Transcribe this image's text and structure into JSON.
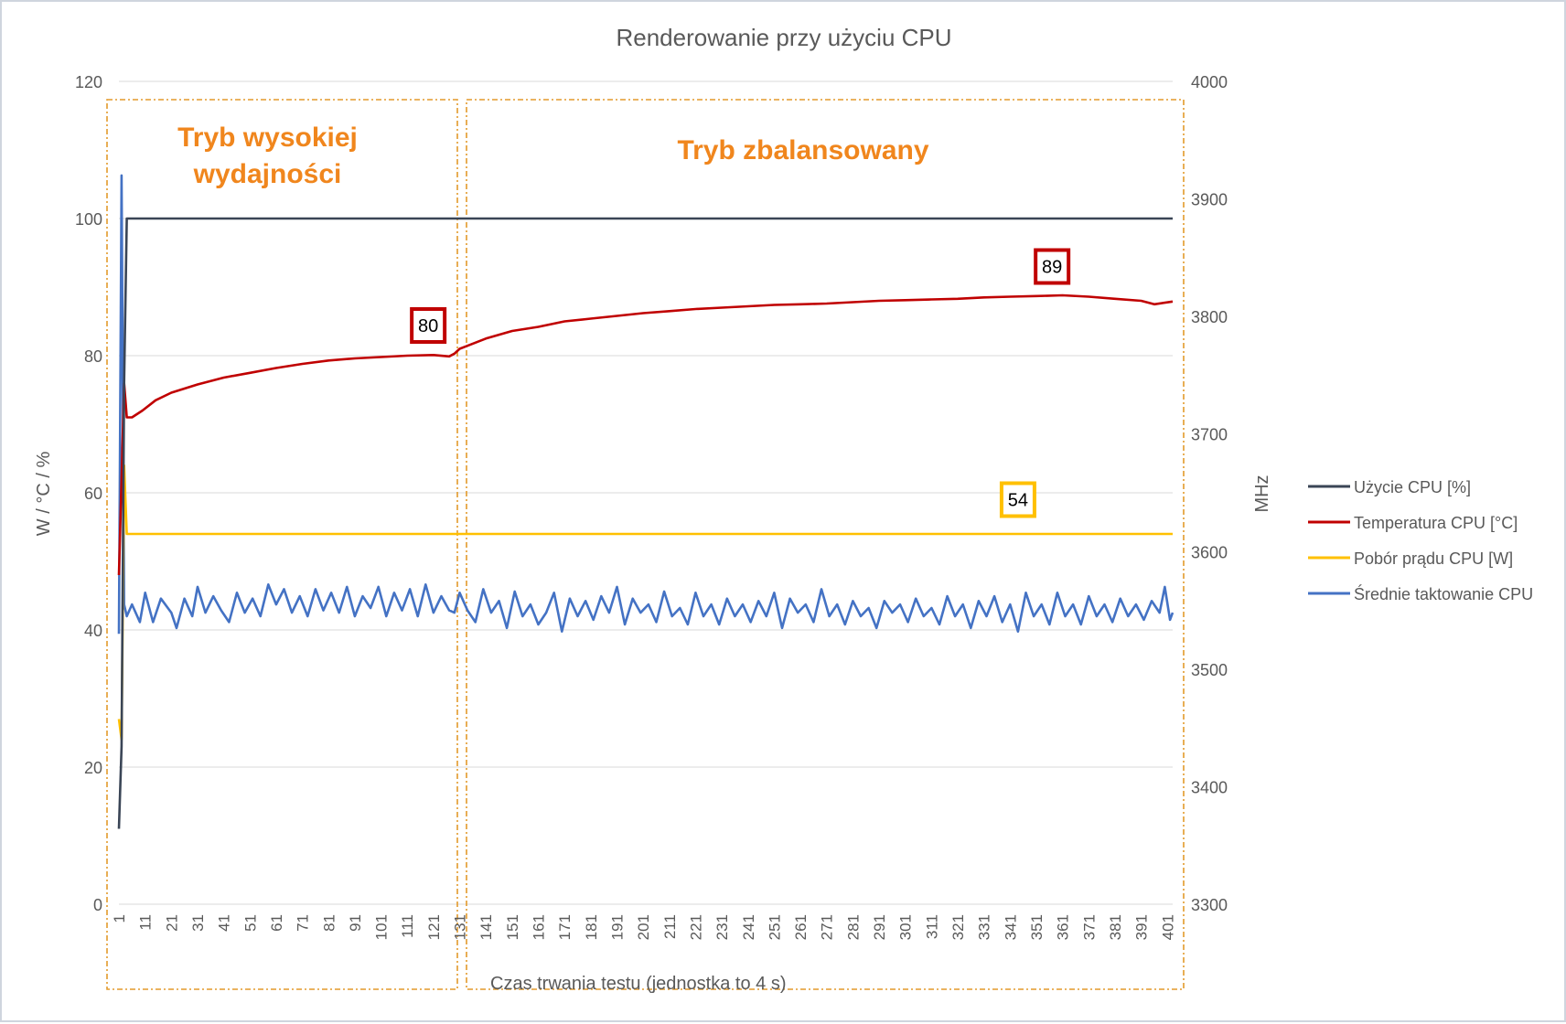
{
  "chart_data": {
    "type": "line",
    "title": "Renderowanie przy użyciu CPU",
    "xlabel": "Czas trwania testu (jednostka to 4 s)",
    "ylabel_left": "W / °C / %",
    "ylabel_right": "MHz",
    "ylim_left": [
      0,
      120
    ],
    "ylim_right": [
      3300,
      4000
    ],
    "yticks_left": [
      0,
      20,
      40,
      60,
      80,
      100,
      120
    ],
    "yticks_right": [
      3300,
      3400,
      3500,
      3600,
      3700,
      3800,
      3900,
      4000
    ],
    "x_range": [
      1,
      403
    ],
    "xticks": [
      1,
      11,
      21,
      31,
      41,
      51,
      61,
      71,
      81,
      91,
      101,
      111,
      121,
      131,
      141,
      151,
      161,
      171,
      181,
      191,
      201,
      211,
      221,
      231,
      241,
      251,
      261,
      271,
      281,
      291,
      301,
      311,
      321,
      331,
      341,
      351,
      361,
      371,
      381,
      391,
      401
    ],
    "grid": "horizontal",
    "legend_position": "right",
    "regions": [
      {
        "label": "Tryb wysokiej wydajności",
        "x_start": 1,
        "x_end": 129
      },
      {
        "label": "Tryb zbalansowany",
        "x_start": 132,
        "x_end": 403
      }
    ],
    "series": [
      {
        "name": "Użycie CPU [%]",
        "axis": "left",
        "color": "#3a4556",
        "points": [
          [
            1,
            11
          ],
          [
            2,
            23
          ],
          [
            3,
            76
          ],
          [
            4,
            100
          ],
          [
            403,
            100
          ]
        ]
      },
      {
        "name": "Temperatura CPU [°C]",
        "axis": "left",
        "color": "#c00000",
        "points": [
          [
            1,
            48
          ],
          [
            2,
            62
          ],
          [
            3,
            76
          ],
          [
            4,
            71
          ],
          [
            6,
            71
          ],
          [
            10,
            72
          ],
          [
            15,
            73.5
          ],
          [
            21,
            74.6
          ],
          [
            31,
            75.8
          ],
          [
            41,
            76.8
          ],
          [
            51,
            77.5
          ],
          [
            61,
            78.2
          ],
          [
            71,
            78.8
          ],
          [
            81,
            79.3
          ],
          [
            91,
            79.6
          ],
          [
            101,
            79.8
          ],
          [
            111,
            80
          ],
          [
            121,
            80.1
          ],
          [
            127,
            79.9
          ],
          [
            129,
            80.3
          ],
          [
            131,
            81
          ],
          [
            141,
            82.5
          ],
          [
            151,
            83.6
          ],
          [
            161,
            84.2
          ],
          [
            171,
            85
          ],
          [
            181,
            85.4
          ],
          [
            191,
            85.8
          ],
          [
            201,
            86.2
          ],
          [
            211,
            86.5
          ],
          [
            221,
            86.8
          ],
          [
            231,
            87
          ],
          [
            241,
            87.2
          ],
          [
            251,
            87.4
          ],
          [
            261,
            87.5
          ],
          [
            271,
            87.6
          ],
          [
            281,
            87.8
          ],
          [
            291,
            88
          ],
          [
            301,
            88.1
          ],
          [
            311,
            88.2
          ],
          [
            321,
            88.3
          ],
          [
            331,
            88.5
          ],
          [
            341,
            88.6
          ],
          [
            351,
            88.7
          ],
          [
            361,
            88.8
          ],
          [
            371,
            88.6
          ],
          [
            381,
            88.3
          ],
          [
            391,
            88
          ],
          [
            396,
            87.5
          ],
          [
            403,
            87.9
          ]
        ]
      },
      {
        "name": "Pobór prądu CPU [W]",
        "axis": "left",
        "color": "#ffc000",
        "points": [
          [
            1,
            27
          ],
          [
            2,
            24
          ],
          [
            3,
            64
          ],
          [
            4,
            54
          ],
          [
            403,
            54
          ]
        ]
      },
      {
        "name": "Średnie taktowanie CPU",
        "axis": "right",
        "color": "#4472c4",
        "points": [
          [
            1,
            3530
          ],
          [
            2,
            3920
          ],
          [
            3,
            3555
          ],
          [
            4,
            3545
          ],
          [
            6,
            3555
          ],
          [
            9,
            3540
          ],
          [
            11,
            3565
          ],
          [
            14,
            3540
          ],
          [
            17,
            3560
          ],
          [
            21,
            3548
          ],
          [
            23,
            3535
          ],
          [
            26,
            3560
          ],
          [
            29,
            3545
          ],
          [
            31,
            3570
          ],
          [
            34,
            3548
          ],
          [
            37,
            3562
          ],
          [
            40,
            3550
          ],
          [
            43,
            3540
          ],
          [
            46,
            3565
          ],
          [
            49,
            3548
          ],
          [
            52,
            3560
          ],
          [
            55,
            3545
          ],
          [
            58,
            3572
          ],
          [
            61,
            3555
          ],
          [
            64,
            3568
          ],
          [
            67,
            3548
          ],
          [
            70,
            3562
          ],
          [
            73,
            3545
          ],
          [
            76,
            3568
          ],
          [
            79,
            3550
          ],
          [
            82,
            3565
          ],
          [
            85,
            3548
          ],
          [
            88,
            3570
          ],
          [
            91,
            3545
          ],
          [
            94,
            3562
          ],
          [
            97,
            3552
          ],
          [
            100,
            3570
          ],
          [
            103,
            3545
          ],
          [
            106,
            3565
          ],
          [
            109,
            3550
          ],
          [
            112,
            3568
          ],
          [
            115,
            3545
          ],
          [
            118,
            3572
          ],
          [
            121,
            3548
          ],
          [
            124,
            3562
          ],
          [
            127,
            3550
          ],
          [
            129,
            3548
          ],
          [
            131,
            3565
          ],
          [
            134,
            3550
          ],
          [
            137,
            3540
          ],
          [
            140,
            3568
          ],
          [
            143,
            3548
          ],
          [
            146,
            3558
          ],
          [
            149,
            3535
          ],
          [
            152,
            3566
          ],
          [
            155,
            3545
          ],
          [
            158,
            3555
          ],
          [
            161,
            3538
          ],
          [
            164,
            3548
          ],
          [
            167,
            3565
          ],
          [
            170,
            3532
          ],
          [
            173,
            3560
          ],
          [
            176,
            3545
          ],
          [
            179,
            3558
          ],
          [
            182,
            3542
          ],
          [
            185,
            3562
          ],
          [
            188,
            3548
          ],
          [
            191,
            3570
          ],
          [
            194,
            3538
          ],
          [
            197,
            3560
          ],
          [
            200,
            3548
          ],
          [
            203,
            3555
          ],
          [
            206,
            3540
          ],
          [
            209,
            3566
          ],
          [
            212,
            3545
          ],
          [
            215,
            3552
          ],
          [
            218,
            3538
          ],
          [
            221,
            3565
          ],
          [
            224,
            3545
          ],
          [
            227,
            3555
          ],
          [
            230,
            3538
          ],
          [
            233,
            3560
          ],
          [
            236,
            3545
          ],
          [
            239,
            3555
          ],
          [
            242,
            3540
          ],
          [
            245,
            3558
          ],
          [
            248,
            3545
          ],
          [
            251,
            3565
          ],
          [
            254,
            3535
          ],
          [
            257,
            3560
          ],
          [
            260,
            3548
          ],
          [
            263,
            3555
          ],
          [
            266,
            3540
          ],
          [
            269,
            3568
          ],
          [
            272,
            3545
          ],
          [
            275,
            3555
          ],
          [
            278,
            3538
          ],
          [
            281,
            3558
          ],
          [
            284,
            3545
          ],
          [
            287,
            3552
          ],
          [
            290,
            3535
          ],
          [
            293,
            3558
          ],
          [
            296,
            3548
          ],
          [
            299,
            3555
          ],
          [
            302,
            3540
          ],
          [
            305,
            3560
          ],
          [
            308,
            3545
          ],
          [
            311,
            3552
          ],
          [
            314,
            3538
          ],
          [
            317,
            3562
          ],
          [
            320,
            3545
          ],
          [
            323,
            3555
          ],
          [
            326,
            3535
          ],
          [
            329,
            3558
          ],
          [
            332,
            3545
          ],
          [
            335,
            3562
          ],
          [
            338,
            3540
          ],
          [
            341,
            3555
          ],
          [
            344,
            3532
          ],
          [
            347,
            3565
          ],
          [
            350,
            3545
          ],
          [
            353,
            3555
          ],
          [
            356,
            3538
          ],
          [
            359,
            3565
          ],
          [
            362,
            3545
          ],
          [
            365,
            3555
          ],
          [
            368,
            3538
          ],
          [
            371,
            3562
          ],
          [
            374,
            3545
          ],
          [
            377,
            3555
          ],
          [
            380,
            3540
          ],
          [
            383,
            3560
          ],
          [
            386,
            3545
          ],
          [
            389,
            3555
          ],
          [
            392,
            3542
          ],
          [
            395,
            3558
          ],
          [
            398,
            3548
          ],
          [
            400,
            3570
          ],
          [
            402,
            3542
          ],
          [
            403,
            3548
          ]
        ]
      }
    ],
    "annotations": [
      {
        "text": "80",
        "series": "Temperatura CPU [°C]",
        "x": 119,
        "y": 84.4,
        "axis": "left",
        "border": "#c00000"
      },
      {
        "text": "89",
        "series": "Temperatura CPU [°C]",
        "x": 357,
        "y": 93,
        "axis": "left",
        "border": "#c00000"
      },
      {
        "text": "54",
        "series": "Pobór prądu CPU [W]",
        "x": 344,
        "y": 59,
        "axis": "left",
        "border": "#ffc000"
      }
    ]
  }
}
